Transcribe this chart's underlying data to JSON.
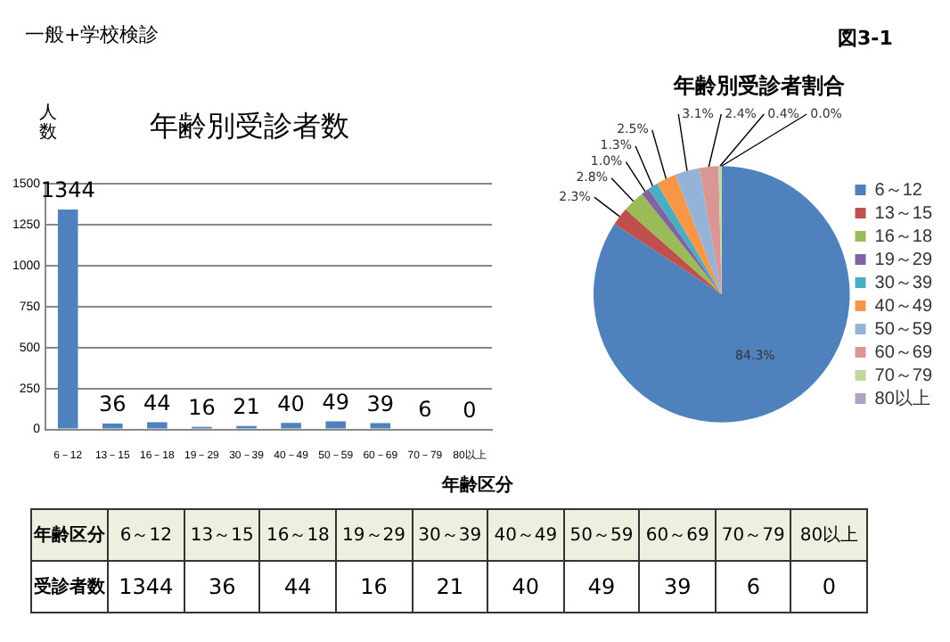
{
  "chart_data": [
    {
      "type": "bar",
      "title": "年齢別受診者数",
      "ylabel": "人数",
      "xlabel": "年齢区分",
      "annotations": [
        "一般+学校検診",
        "図3-1"
      ],
      "categories": [
        "6－12",
        "13－15",
        "16－18",
        "19－29",
        "30－39",
        "40－49",
        "50－59",
        "60－69",
        "70－79",
        "80以上"
      ],
      "values": [
        1344,
        36,
        44,
        16,
        21,
        40,
        49,
        39,
        6,
        0
      ],
      "color": "#4f81bd",
      "ylim": [
        0,
        1500
      ],
      "yticks": [
        0,
        250,
        500,
        750,
        1000,
        1250,
        1500
      ],
      "grid": "y",
      "data_labels": true
    },
    {
      "type": "pie",
      "title": "年齢別受診者割合",
      "categories": [
        "6～12",
        "13～15",
        "16～18",
        "19～29",
        "30～39",
        "40～49",
        "50～59",
        "60～69",
        "70～79",
        "80以上"
      ],
      "values": [
        84.3,
        2.3,
        2.8,
        1.0,
        1.3,
        2.5,
        3.1,
        2.4,
        0.4,
        0.0
      ],
      "value_labels": [
        "84.3%",
        "2.3%",
        "2.8%",
        "1.0%",
        "1.3%",
        "2.5%",
        "3.1%",
        "2.4%",
        "0.4%",
        "0.0%"
      ],
      "colors": [
        "#4f81bd",
        "#c0504d",
        "#9bbb59",
        "#8064a2",
        "#4bacc6",
        "#f79646",
        "#95b3d7",
        "#d99694",
        "#c3d69b",
        "#b2a1c7"
      ],
      "legend": "right"
    },
    {
      "type": "other",
      "xlabel": "年齢区分",
      "ylabel": "受診者数",
      "categories": [
        "6～12",
        "13～15",
        "16～18",
        "19～29",
        "30～39",
        "40～49",
        "50～59",
        "60～69",
        "70～79",
        "80以上"
      ],
      "annotations": [
        "1344",
        "36",
        "44",
        "16",
        "21",
        "40",
        "49",
        "39",
        "6",
        "0"
      ]
    }
  ]
}
